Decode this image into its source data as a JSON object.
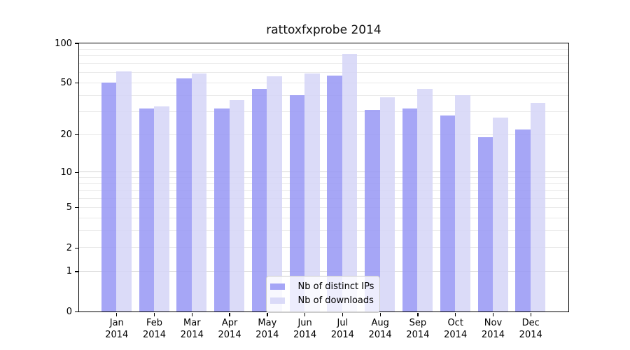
{
  "chart_data": {
    "type": "bar",
    "title": "rattoxfxprobe 2014",
    "xlabel": "",
    "ylabel": "",
    "yscale": "log1p",
    "ylim": [
      0,
      100
    ],
    "y_ticks": [
      100,
      50,
      20,
      10,
      5,
      2,
      1,
      0
    ],
    "grid_minor": [
      2,
      3,
      4,
      5,
      6,
      7,
      8,
      9,
      20,
      30,
      40,
      50,
      60,
      70,
      80,
      90
    ],
    "grid_major": [
      1,
      10
    ],
    "grid": "on",
    "legend_position": "lower center",
    "categories": [
      "Jan 2014",
      "Feb 2014",
      "Mar 2014",
      "Apr 2014",
      "May 2014",
      "Jun 2014",
      "Jul 2014",
      "Aug 2014",
      "Sep 2014",
      "Oct 2014",
      "Nov 2014",
      "Dec 2014"
    ],
    "x_tick_labels": [
      [
        "Jan",
        "2014"
      ],
      [
        "Feb",
        "2014"
      ],
      [
        "Mar",
        "2014"
      ],
      [
        "Apr",
        "2014"
      ],
      [
        "May",
        "2014"
      ],
      [
        "Jun",
        "2014"
      ],
      [
        "Jul",
        "2014"
      ],
      [
        "Aug",
        "2014"
      ],
      [
        "Sep",
        "2014"
      ],
      [
        "Oct",
        "2014"
      ],
      [
        "Nov",
        "2014"
      ],
      [
        "Dec",
        "2014"
      ]
    ],
    "series": [
      {
        "name": "Nb of distinct IPs",
        "color": "#a6a6f5",
        "base_rgba": "rgba(150,150,244,0.85)",
        "values": [
          50,
          32,
          54,
          32,
          45,
          40,
          57,
          31,
          32,
          28,
          19,
          22
        ]
      },
      {
        "name": "Nb of downloads",
        "color": "#dbdbf8",
        "base_rgba": "rgba(213,213,247,0.85)",
        "values": [
          61,
          33,
          59,
          37,
          56,
          59,
          83,
          39,
          45,
          40,
          27,
          35
        ]
      }
    ]
  },
  "colors": {
    "background": "#ffffff",
    "frame": "#000000",
    "grid_minor": "#e9e9e9",
    "grid_major": "#d2d2d2",
    "text": "#111111"
  }
}
